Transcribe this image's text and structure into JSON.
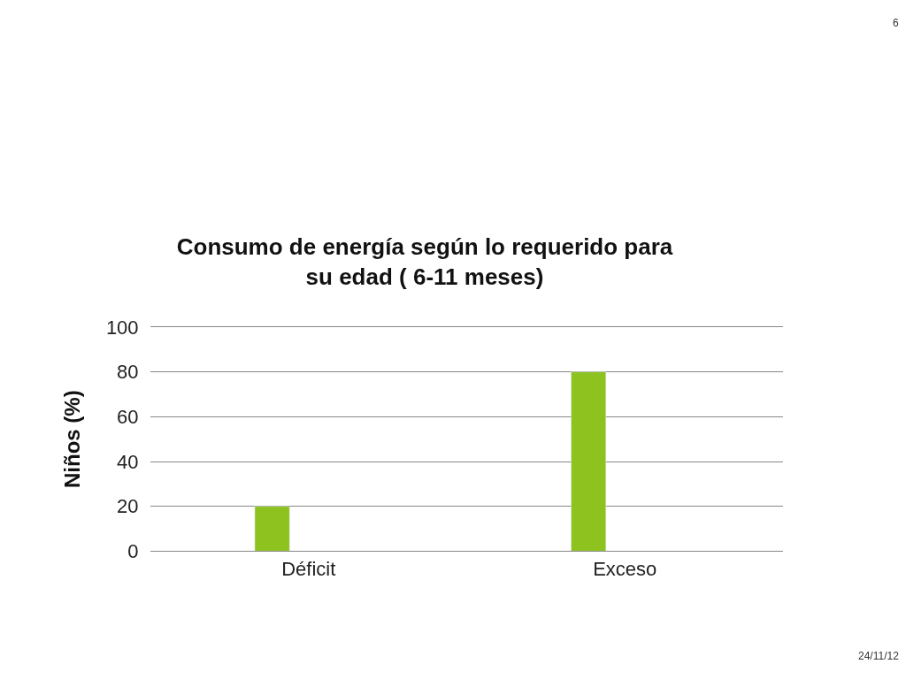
{
  "chart_data": {
    "type": "bar",
    "title": "Consumo de energía según lo requerido para\nsu edad ( 6-11 meses)",
    "ylabel": "Niños (%)",
    "categories": [
      "Déficit",
      "Exceso"
    ],
    "values": [
      20,
      80
    ],
    "color": "#8dc21f",
    "ylim": [
      0,
      100
    ],
    "yticks": [
      0,
      20,
      40,
      60,
      80,
      100
    ],
    "grid": "y",
    "annotations": [
      "6",
      "24/11/12"
    ]
  }
}
